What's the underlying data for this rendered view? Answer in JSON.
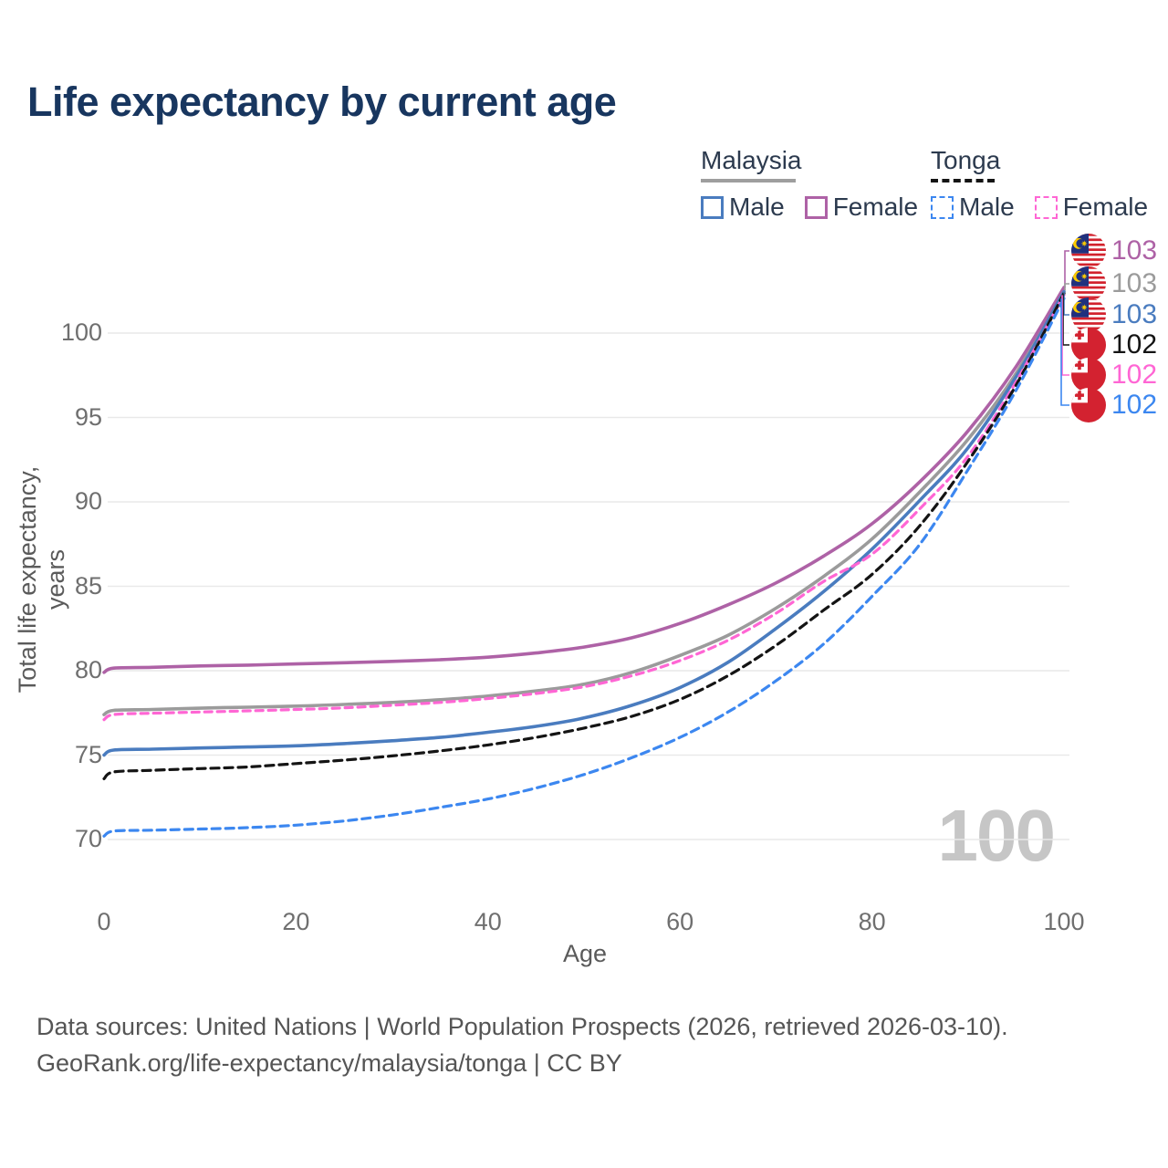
{
  "title": "Life expectancy by current age",
  "watermark": "100",
  "legend": {
    "groups": [
      {
        "name": "Malaysia",
        "entries": [
          {
            "label": "Male",
            "series": "malaysia-male"
          },
          {
            "label": "Female",
            "series": "malaysia-female"
          }
        ]
      },
      {
        "name": "Tonga",
        "entries": [
          {
            "label": "Male",
            "series": "tonga-male"
          },
          {
            "label": "Female",
            "series": "tonga-female"
          }
        ]
      }
    ]
  },
  "end_labels": [
    {
      "series": "malaysia-female",
      "value": "103",
      "flag": "malaysia"
    },
    {
      "series": "malaysia-total",
      "value": "103",
      "flag": "malaysia"
    },
    {
      "series": "malaysia-male",
      "value": "103",
      "flag": "malaysia"
    },
    {
      "series": "tonga-total",
      "value": "102",
      "flag": "tonga"
    },
    {
      "series": "tonga-female",
      "value": "102",
      "flag": "tonga"
    },
    {
      "series": "tonga-male",
      "value": "102",
      "flag": "tonga"
    }
  ],
  "footer": {
    "line1": "Data sources: United Nations | World Population Prospects (2026, retrieved 2026-03-10).",
    "line2": "GeoRank.org/life-expectancy/malaysia/tonga | CC BY"
  },
  "chart_data": {
    "type": "line",
    "x_label": "Age",
    "y_label": "Total life expectancy, years",
    "x_ticks": [
      0,
      20,
      40,
      60,
      80,
      100
    ],
    "y_ticks": [
      70,
      75,
      80,
      85,
      90,
      95,
      100
    ],
    "x_range": [
      0,
      100
    ],
    "y_range": [
      70,
      103
    ],
    "grid": true,
    "ages": [
      0,
      1,
      5,
      10,
      15,
      20,
      25,
      30,
      35,
      40,
      45,
      50,
      55,
      60,
      65,
      70,
      75,
      80,
      85,
      90,
      95,
      100
    ],
    "series": [
      {
        "id": "malaysia-total",
        "name": "Malaysia (both sexes)",
        "color": "#9b9b9b",
        "dash": "",
        "width": 3.6,
        "values": [
          77.4,
          77.65,
          77.7,
          77.78,
          77.84,
          77.9,
          78.0,
          78.12,
          78.28,
          78.5,
          78.8,
          79.2,
          79.9,
          80.9,
          82.1,
          83.7,
          85.6,
          87.8,
          90.6,
          93.7,
          97.6,
          102.55
        ]
      },
      {
        "id": "malaysia-female",
        "name": "Malaysia female",
        "color": "#ae62a6",
        "dash": "",
        "width": 3.6,
        "values": [
          79.9,
          80.15,
          80.2,
          80.28,
          80.33,
          80.4,
          80.47,
          80.55,
          80.65,
          80.8,
          81.05,
          81.4,
          81.95,
          82.8,
          83.9,
          85.2,
          86.8,
          88.7,
          91.2,
          94.2,
          98.0,
          102.7
        ]
      },
      {
        "id": "malaysia-male",
        "name": "Malaysia male",
        "color": "#4a7cbf",
        "dash": "",
        "width": 3.6,
        "values": [
          75.0,
          75.3,
          75.35,
          75.42,
          75.48,
          75.55,
          75.68,
          75.85,
          76.05,
          76.35,
          76.7,
          77.2,
          77.95,
          79.0,
          80.5,
          82.5,
          84.7,
          87.2,
          90.1,
          93.2,
          97.4,
          102.45
        ]
      },
      {
        "id": "tonga-female",
        "name": "Tonga female",
        "color": "#ff66d4",
        "dash": "8 6",
        "width": 3.2,
        "values": [
          77.1,
          77.4,
          77.48,
          77.55,
          77.62,
          77.7,
          77.8,
          77.95,
          78.12,
          78.35,
          78.65,
          79.05,
          79.7,
          80.6,
          81.8,
          83.4,
          85.3,
          86.9,
          89.6,
          92.7,
          97.1,
          102.25
        ]
      },
      {
        "id": "tonga-total",
        "name": "Tonga (both sexes)",
        "color": "#141414",
        "dash": "9 6",
        "width": 3.2,
        "values": [
          73.6,
          74.0,
          74.1,
          74.2,
          74.3,
          74.5,
          74.7,
          74.95,
          75.25,
          75.6,
          76.05,
          76.6,
          77.3,
          78.3,
          79.7,
          81.5,
          83.6,
          85.7,
          88.6,
          92.4,
          96.9,
          102.35
        ]
      },
      {
        "id": "tonga-male",
        "name": "Tonga male",
        "color": "#3c87f0",
        "dash": "9 6",
        "width": 3.2,
        "values": [
          70.2,
          70.5,
          70.55,
          70.62,
          70.7,
          70.85,
          71.1,
          71.45,
          71.9,
          72.4,
          73.05,
          73.85,
          74.85,
          76.05,
          77.55,
          79.4,
          81.6,
          84.4,
          87.5,
          91.9,
          96.6,
          102.05
        ]
      }
    ]
  }
}
